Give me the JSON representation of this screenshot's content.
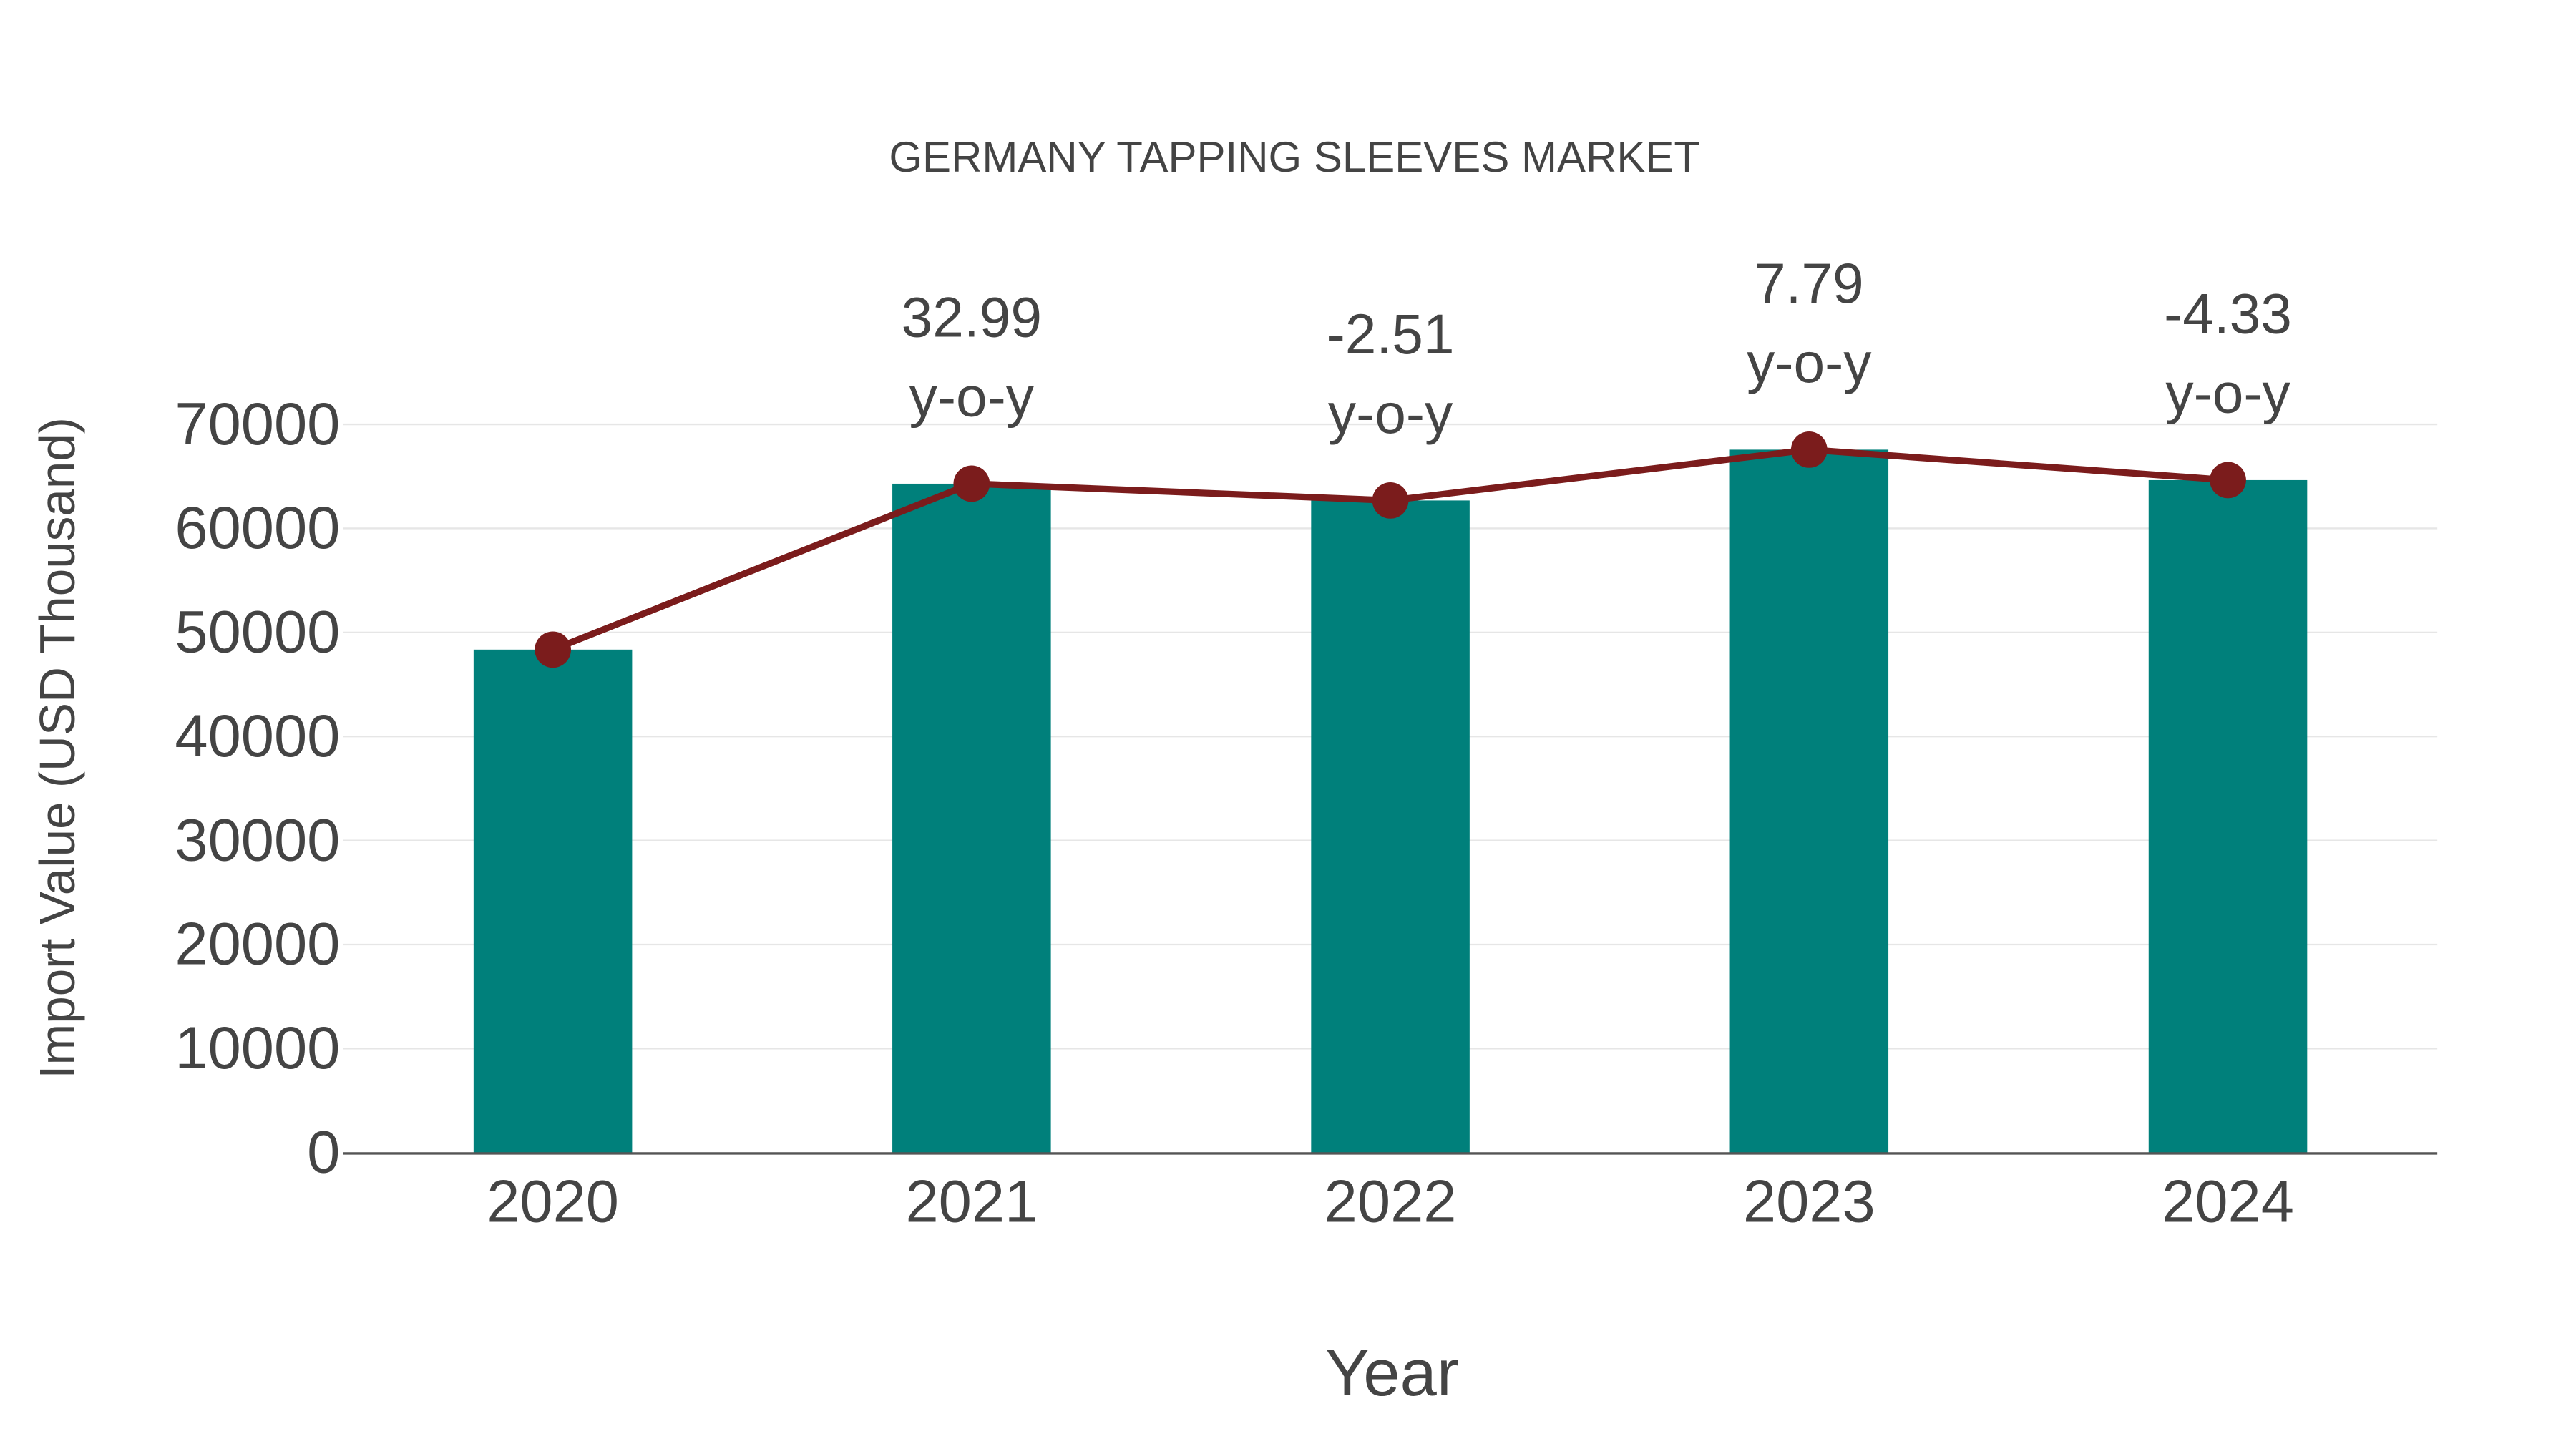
{
  "chart_data": {
    "type": "bar",
    "title": "GERMANY TAPPING SLEEVES MARKET",
    "xlabel": "Year",
    "ylabel": "Import Value (USD Thousand)",
    "categories": [
      "2020",
      "2021",
      "2022",
      "2023",
      "2024"
    ],
    "series": [
      {
        "name": "Import Value",
        "type": "bar",
        "color": "#00807b",
        "values": [
          48350,
          64300,
          62686,
          67570,
          64644
        ]
      },
      {
        "name": "Trend",
        "type": "line",
        "color": "#7b1c1c",
        "values": [
          48350,
          64300,
          62686,
          67570,
          64644
        ]
      }
    ],
    "annotations": [
      {
        "category": "2021",
        "value": "32.99",
        "suffix": "y-o-y"
      },
      {
        "category": "2022",
        "value": "-2.51",
        "suffix": "y-o-y"
      },
      {
        "category": "2023",
        "value": "7.79",
        "suffix": "y-o-y"
      },
      {
        "category": "2024",
        "value": "-4.33",
        "suffix": "y-o-y"
      }
    ],
    "ylim": [
      0,
      70000
    ],
    "yticks": [
      "0",
      "10000",
      "20000",
      "30000",
      "40000",
      "50000",
      "60000",
      "70000"
    ],
    "grid": true,
    "legend": "none"
  }
}
